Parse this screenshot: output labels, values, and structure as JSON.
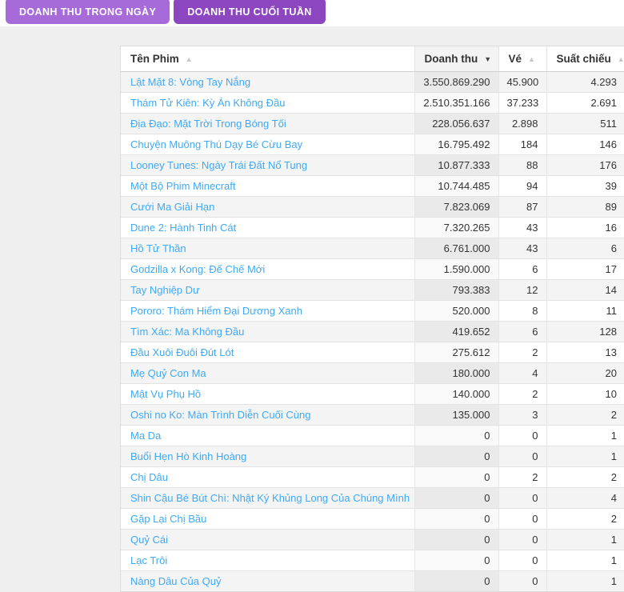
{
  "tabs": [
    {
      "label": "DOANH THU TRONG NGÀY",
      "active": false
    },
    {
      "label": "DOANH THU CUỐI TUẦN",
      "active": true
    }
  ],
  "colors": {
    "tab_active": "#8c46c0",
    "tab_inactive": "#a76bd9",
    "movie_link": "#3fa9f5",
    "row_stripe": "#f4f4f4"
  },
  "table": {
    "columns": [
      {
        "label": "Tên Phim",
        "sort_glyph": "▲",
        "sort_active": false,
        "sorted": false
      },
      {
        "label": "Doanh thu",
        "sort_glyph": "▼",
        "sort_active": true,
        "sorted": true
      },
      {
        "label": "Vé",
        "sort_glyph": "▲",
        "sort_active": false,
        "sorted": false
      },
      {
        "label": "Suất chiếu",
        "sort_glyph": "▲",
        "sort_active": false,
        "sorted": false
      }
    ],
    "rows": [
      {
        "title": "Lật Mặt 8: Vòng Tay Nắng",
        "doanh_thu": "3.550.869.290",
        "ve": "45.900",
        "suat_chieu": "4.293"
      },
      {
        "title": "Thám Tử Kiên: Kỳ Án Không Đầu",
        "doanh_thu": "2.510.351.166",
        "ve": "37.233",
        "suat_chieu": "2.691"
      },
      {
        "title": "Địa Đạo: Mặt Trời Trong Bóng Tối",
        "doanh_thu": "228.056.637",
        "ve": "2.898",
        "suat_chieu": "511"
      },
      {
        "title": "Chuyện Muông Thú Dạy Bé Cừu Bay",
        "doanh_thu": "16.795.492",
        "ve": "184",
        "suat_chieu": "146"
      },
      {
        "title": "Looney Tunes: Ngày Trái Đất Nổ Tung",
        "doanh_thu": "10.877.333",
        "ve": "88",
        "suat_chieu": "176"
      },
      {
        "title": "Một Bộ Phim Minecraft",
        "doanh_thu": "10.744.485",
        "ve": "94",
        "suat_chieu": "39"
      },
      {
        "title": "Cưới Ma Giải Hạn",
        "doanh_thu": "7.823.069",
        "ve": "87",
        "suat_chieu": "89"
      },
      {
        "title": "Dune 2: Hành Tinh Cát",
        "doanh_thu": "7.320.265",
        "ve": "43",
        "suat_chieu": "16"
      },
      {
        "title": "Hồ Tử Thần",
        "doanh_thu": "6.761.000",
        "ve": "43",
        "suat_chieu": "6"
      },
      {
        "title": "Godzilla x Kong: Đế Chế Mới",
        "doanh_thu": "1.590.000",
        "ve": "6",
        "suat_chieu": "17"
      },
      {
        "title": "Tay Nghiệp Dư",
        "doanh_thu": "793.383",
        "ve": "12",
        "suat_chieu": "14"
      },
      {
        "title": "Pororo: Thám Hiểm Đại Dương Xanh",
        "doanh_thu": "520.000",
        "ve": "8",
        "suat_chieu": "11"
      },
      {
        "title": "Tìm Xác: Ma Không Đầu",
        "doanh_thu": "419.652",
        "ve": "6",
        "suat_chieu": "128"
      },
      {
        "title": "Đầu Xuôi Đuôi Đút Lót",
        "doanh_thu": "275.612",
        "ve": "2",
        "suat_chieu": "13"
      },
      {
        "title": "Mẹ Quỷ Con Ma",
        "doanh_thu": "180.000",
        "ve": "4",
        "suat_chieu": "20"
      },
      {
        "title": "Mật Vụ Phụ Hồ",
        "doanh_thu": "140.000",
        "ve": "2",
        "suat_chieu": "10"
      },
      {
        "title": "Oshi no Ko: Màn Trình Diễn Cuối Cùng",
        "doanh_thu": "135.000",
        "ve": "3",
        "suat_chieu": "2"
      },
      {
        "title": "Ma Da",
        "doanh_thu": "0",
        "ve": "0",
        "suat_chieu": "1"
      },
      {
        "title": "Buổi Hẹn Hò Kinh Hoàng",
        "doanh_thu": "0",
        "ve": "0",
        "suat_chieu": "1"
      },
      {
        "title": "Chị Dâu",
        "doanh_thu": "0",
        "ve": "2",
        "suat_chieu": "2"
      },
      {
        "title": "Shin Cậu Bé Bút Chì: Nhật Ký Khủng Long Của Chúng Mình",
        "doanh_thu": "0",
        "ve": "0",
        "suat_chieu": "4"
      },
      {
        "title": "Gặp Lại Chị Bầu",
        "doanh_thu": "0",
        "ve": "0",
        "suat_chieu": "2"
      },
      {
        "title": "Quỷ Cái",
        "doanh_thu": "0",
        "ve": "0",
        "suat_chieu": "1"
      },
      {
        "title": "Lạc Trôi",
        "doanh_thu": "0",
        "ve": "0",
        "suat_chieu": "1"
      },
      {
        "title": "Nàng Dâu Của Quỷ",
        "doanh_thu": "0",
        "ve": "0",
        "suat_chieu": "1"
      }
    ]
  }
}
